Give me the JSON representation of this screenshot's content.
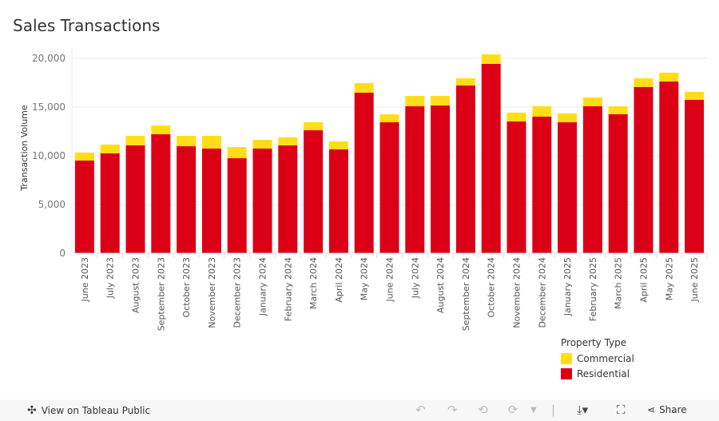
{
  "title": "Sales Transactions",
  "chart_data": {
    "type": "bar",
    "stacked": true,
    "ylabel": "Transaction Volume",
    "ylim": [
      0,
      20000
    ],
    "yticks": [
      0,
      5000,
      10000,
      15000,
      20000
    ],
    "ytick_labels": [
      "0",
      "5,000",
      "10,000",
      "15,000",
      "20,000"
    ],
    "grid": true,
    "categories": [
      "June 2023",
      "July 2023",
      "August 2023",
      "September 2023",
      "October 2023",
      "November 2023",
      "December 2023",
      "January 2024",
      "February 2024",
      "March 2024",
      "April 2024",
      "May 2024",
      "June 2024",
      "July 2024",
      "August 2024",
      "September 2024",
      "October 2024",
      "November 2024",
      "December 2024",
      "January 2025",
      "February 2025",
      "March 2025",
      "April 2025",
      "May 2025",
      "June 2025"
    ],
    "series": [
      {
        "name": "Residential",
        "color": "#dc0016",
        "values": [
          9510,
          10250,
          11070,
          12210,
          10980,
          10740,
          9750,
          10740,
          11070,
          12620,
          10660,
          16480,
          13440,
          15080,
          15160,
          17210,
          19430,
          13520,
          14020,
          13440,
          15080,
          14260,
          17050,
          17620,
          15740
        ]
      },
      {
        "name": "Commercial",
        "color": "#ffde17",
        "values": [
          820,
          900,
          980,
          900,
          1070,
          1310,
          1150,
          900,
          820,
          820,
          820,
          980,
          820,
          1070,
          990,
          740,
          980,
          910,
          1060,
          900,
          900,
          820,
          900,
          900,
          820
        ]
      }
    ],
    "legend": {
      "title": "Property Type",
      "placement": "bottom-right",
      "entries": [
        "Commercial",
        "Residential"
      ]
    }
  },
  "footer": {
    "view_label": "View on Tableau Public",
    "share_label": "Share"
  }
}
